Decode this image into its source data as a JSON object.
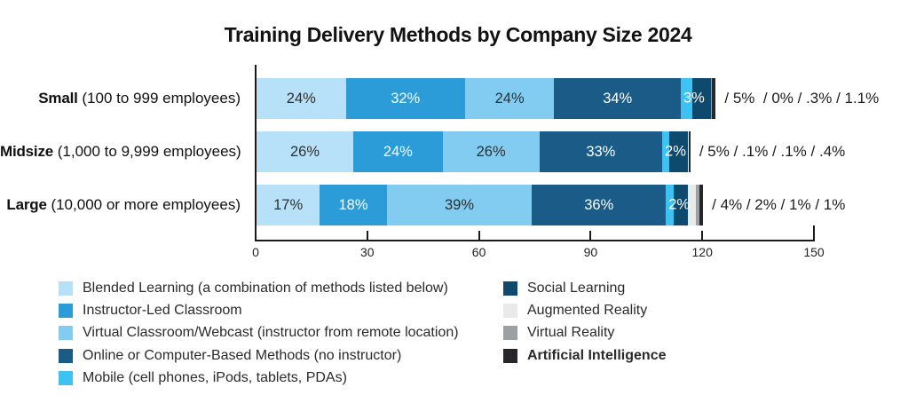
{
  "title": "Training Delivery Methods by Company Size 2024",
  "chart_data": {
    "type": "bar",
    "orientation": "horizontal",
    "stacked": true,
    "title": "Training Delivery Methods by Company Size 2024",
    "xlabel": "",
    "ylabel": "",
    "x_axis": {
      "min": 0,
      "max": 150,
      "ticks": [
        "0",
        "30",
        "60",
        "90",
        "120",
        "150"
      ]
    },
    "grid": false,
    "legend_position": "bottom",
    "categories": [
      {
        "label": "Small",
        "sublabel": "(100 to 999 employees)",
        "overflow_annotation": "/ 5%  / 0% / .3% / 1.1%"
      },
      {
        "label": "Midsize",
        "sublabel": "(1,000 to 9,999 employees)",
        "overflow_annotation": "/ 5% / .1% / .1% / .4%"
      },
      {
        "label": "Large",
        "sublabel": "(10,000 or more employees)",
        "overflow_annotation": "/ 4% / 2% / 1% / 1%"
      }
    ],
    "series": [
      {
        "name": "Blended Learning (a combination of methods listed below)",
        "color": "#B7E1F8",
        "values": [
          24,
          26,
          17
        ],
        "labels": [
          "24%",
          "26%",
          "17%"
        ],
        "label_color": "#2E2E2E"
      },
      {
        "name": "Instructor-Led Classroom",
        "color": "#2C9CD9",
        "values": [
          32,
          24,
          18
        ],
        "labels": [
          "32%",
          "24%",
          "18%"
        ],
        "label_color": "#FFFFFF"
      },
      {
        "name": "Virtual Classroom/Webcast (instructor from remote location)",
        "color": "#82CCF2",
        "values": [
          24,
          26,
          39
        ],
        "labels": [
          "24%",
          "26%",
          "39%"
        ],
        "label_color": "#2E2E2E"
      },
      {
        "name": "Online or Computer-Based Methods (no instructor)",
        "color": "#1A5C87",
        "values": [
          34,
          33,
          36
        ],
        "labels": [
          "34%",
          "33%",
          "36%"
        ],
        "label_color": "#FFFFFF"
      },
      {
        "name": "Mobile (cell phones, iPods, tablets, PDAs)",
        "color": "#3EC2F2",
        "values": [
          3,
          2,
          2
        ],
        "labels": [
          "3%",
          "2%",
          "2%"
        ],
        "label_color": "#FFFFFF",
        "label_overlay": true
      },
      {
        "name": "Social Learning",
        "color": "#0D4A6E",
        "values": [
          5,
          5,
          4
        ]
      },
      {
        "name": "Augmented Reality",
        "color": "#E9EAEA",
        "values": [
          0,
          0.1,
          2
        ]
      },
      {
        "name": "Virtual Reality",
        "color": "#9CA0A3",
        "values": [
          0.3,
          0.1,
          1
        ]
      },
      {
        "name": "Artificial Intelligence",
        "color": "#26272B",
        "values": [
          1.1,
          0.4,
          1
        ]
      }
    ],
    "legend": {
      "left_column_series": [
        0,
        1,
        2,
        3,
        4
      ],
      "right_column_series": [
        5,
        6,
        7,
        8
      ],
      "bold_labels": [
        "Artificial Intelligence"
      ]
    }
  }
}
